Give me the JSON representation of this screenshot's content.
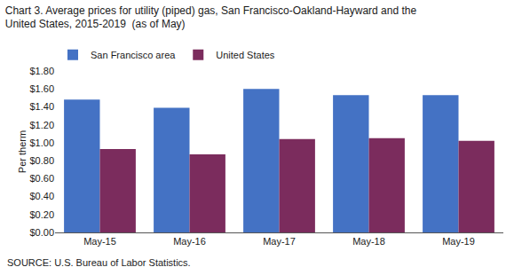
{
  "chart_data": {
    "type": "bar",
    "title": "Chart 3. Average prices for utility (piped) gas, San Francisco-Oakland-Hayward and the",
    "subtitle": "United States, 2015-2019  (as of May)",
    "ylabel": "Per therm",
    "annotations": [
      "SOURCE: U.S. Bureau of Labor Statistics."
    ],
    "categories": [
      "May-15",
      "May-16",
      "May-17",
      "May-18",
      "May-19"
    ],
    "series": [
      {
        "name": "San Francisco area",
        "color": "#4472C4",
        "values": [
          1.48,
          1.39,
          1.6,
          1.53,
          1.53
        ]
      },
      {
        "name": "United States",
        "color": "#7B2C5D",
        "values": [
          0.93,
          0.87,
          1.04,
          1.05,
          1.02
        ]
      }
    ],
    "ylim": [
      0.0,
      1.8
    ],
    "yticks": [
      {
        "value": 0.0,
        "label": "$0.00"
      },
      {
        "value": 0.2,
        "label": "$0.20"
      },
      {
        "value": 0.4,
        "label": "$0.40"
      },
      {
        "value": 0.6,
        "label": "$0.60"
      },
      {
        "value": 0.8,
        "label": "$0.80"
      },
      {
        "value": 1.0,
        "label": "$1.00"
      },
      {
        "value": 1.2,
        "label": "$1.20"
      },
      {
        "value": 1.4,
        "label": "$1.40"
      },
      {
        "value": 1.6,
        "label": "$1.60"
      },
      {
        "value": 1.8,
        "label": "$1.80"
      }
    ],
    "grid": false,
    "legend": "upper left"
  }
}
